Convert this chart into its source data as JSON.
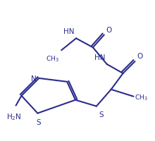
{
  "bg": "#ffffff",
  "lc": "#2c2c8c",
  "lw": 1.5,
  "fs": 7.5,
  "figsize": [
    2.2,
    2.01
  ],
  "dpi": 100,
  "xlim": [
    0,
    220
  ],
  "ylim": [
    201,
    0
  ]
}
